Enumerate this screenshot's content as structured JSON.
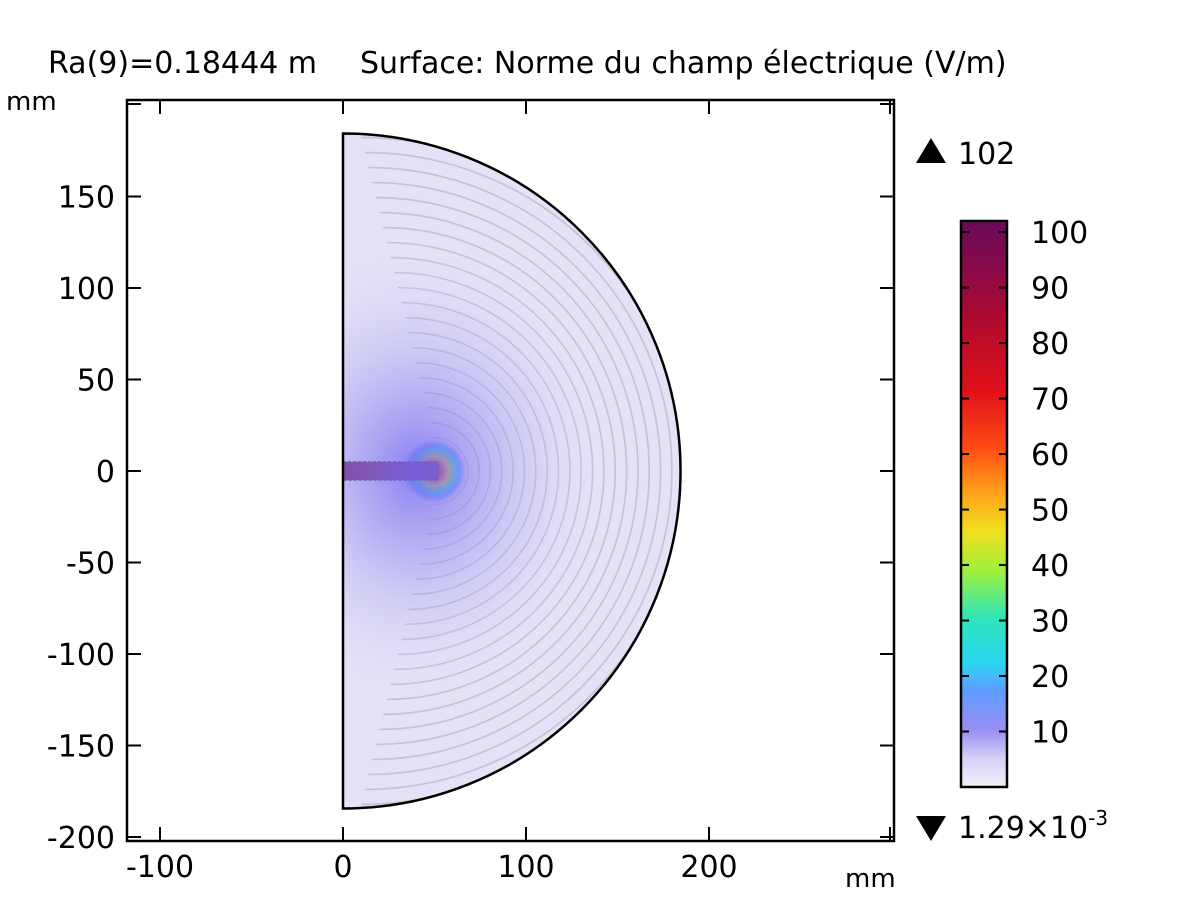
{
  "title": {
    "parameter": "Ra(9)=0.18444 m",
    "expression": "Surface: Norme du champ électrique (V/m)"
  },
  "colors": {
    "rod": "#6a0a5a",
    "background_field": "#e4e2f6",
    "streamline": "#b9b6c6"
  },
  "chart_data": {
    "type": "heatmap",
    "quantity": "Norme du champ électrique",
    "unit": "V/m",
    "xlabel_unit": "mm",
    "ylabel_unit": "mm",
    "xlim": [
      -120,
      300
    ],
    "ylim": [
      -202,
      202
    ],
    "x_ticks": [
      -100,
      0,
      100,
      200
    ],
    "y_ticks": [
      150,
      100,
      50,
      0,
      -50,
      -100,
      -150,
      -200
    ],
    "domain": {
      "shape": "half-disk",
      "radius_mm": 184.44,
      "center": [
        0,
        0
      ]
    },
    "electrode": {
      "x_range_mm": [
        0,
        52
      ],
      "half_width_mm": 5,
      "value": 100
    },
    "hotspot": {
      "x_mm": 52,
      "y_mm": 0,
      "peak_value": 102
    },
    "colorbar": {
      "colormap": "Rainbow-Light",
      "ticks": [
        100,
        90,
        80,
        70,
        60,
        50,
        40,
        30,
        20,
        10
      ],
      "min_value": 0.00129,
      "max_value": 102,
      "max_label": "102",
      "min_label_mantissa": "1.29×10",
      "min_label_exponent": "-3"
    },
    "streamlines": "electric field lines, circular arcs around electrode tip",
    "grid": false,
    "legend": "right (color bar)"
  }
}
